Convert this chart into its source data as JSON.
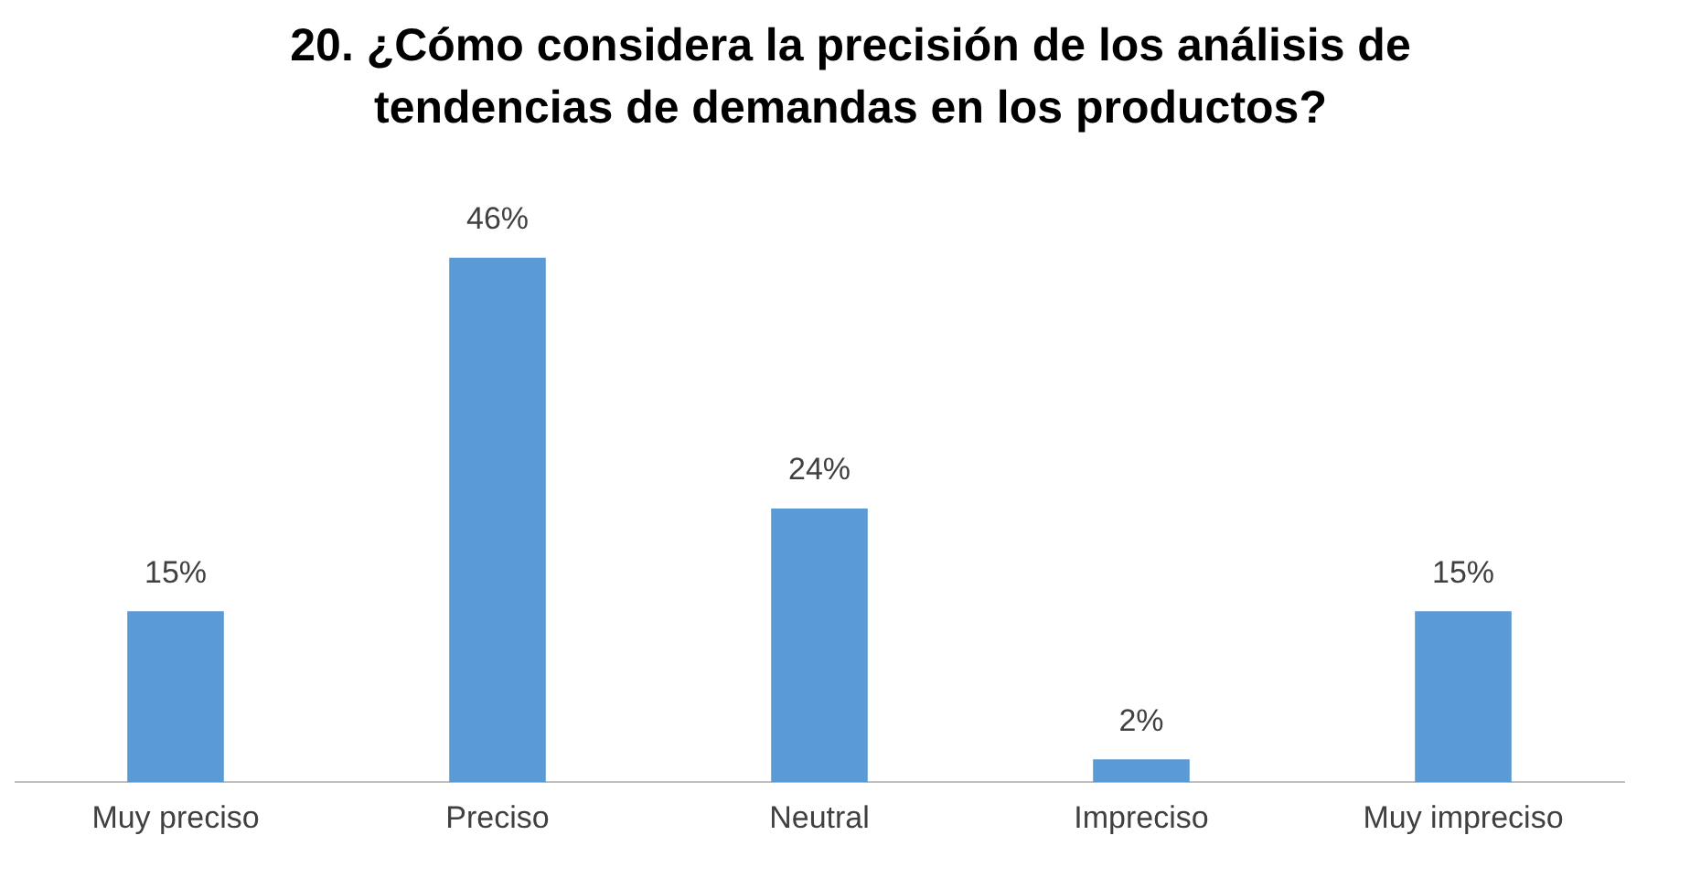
{
  "chart_data": {
    "type": "bar",
    "title": "20. ¿Cómo considera la precisión de los análisis de tendencias de demandas en los productos?",
    "categories": [
      "Muy preciso",
      "Preciso",
      "Neutral",
      "Impreciso",
      "Muy impreciso"
    ],
    "values": [
      15,
      46,
      24,
      2,
      15
    ],
    "value_labels": [
      "15%",
      "46%",
      "24%",
      "2%",
      "15%"
    ],
    "color": "#5b9bd5",
    "grid": false,
    "legend": false
  }
}
